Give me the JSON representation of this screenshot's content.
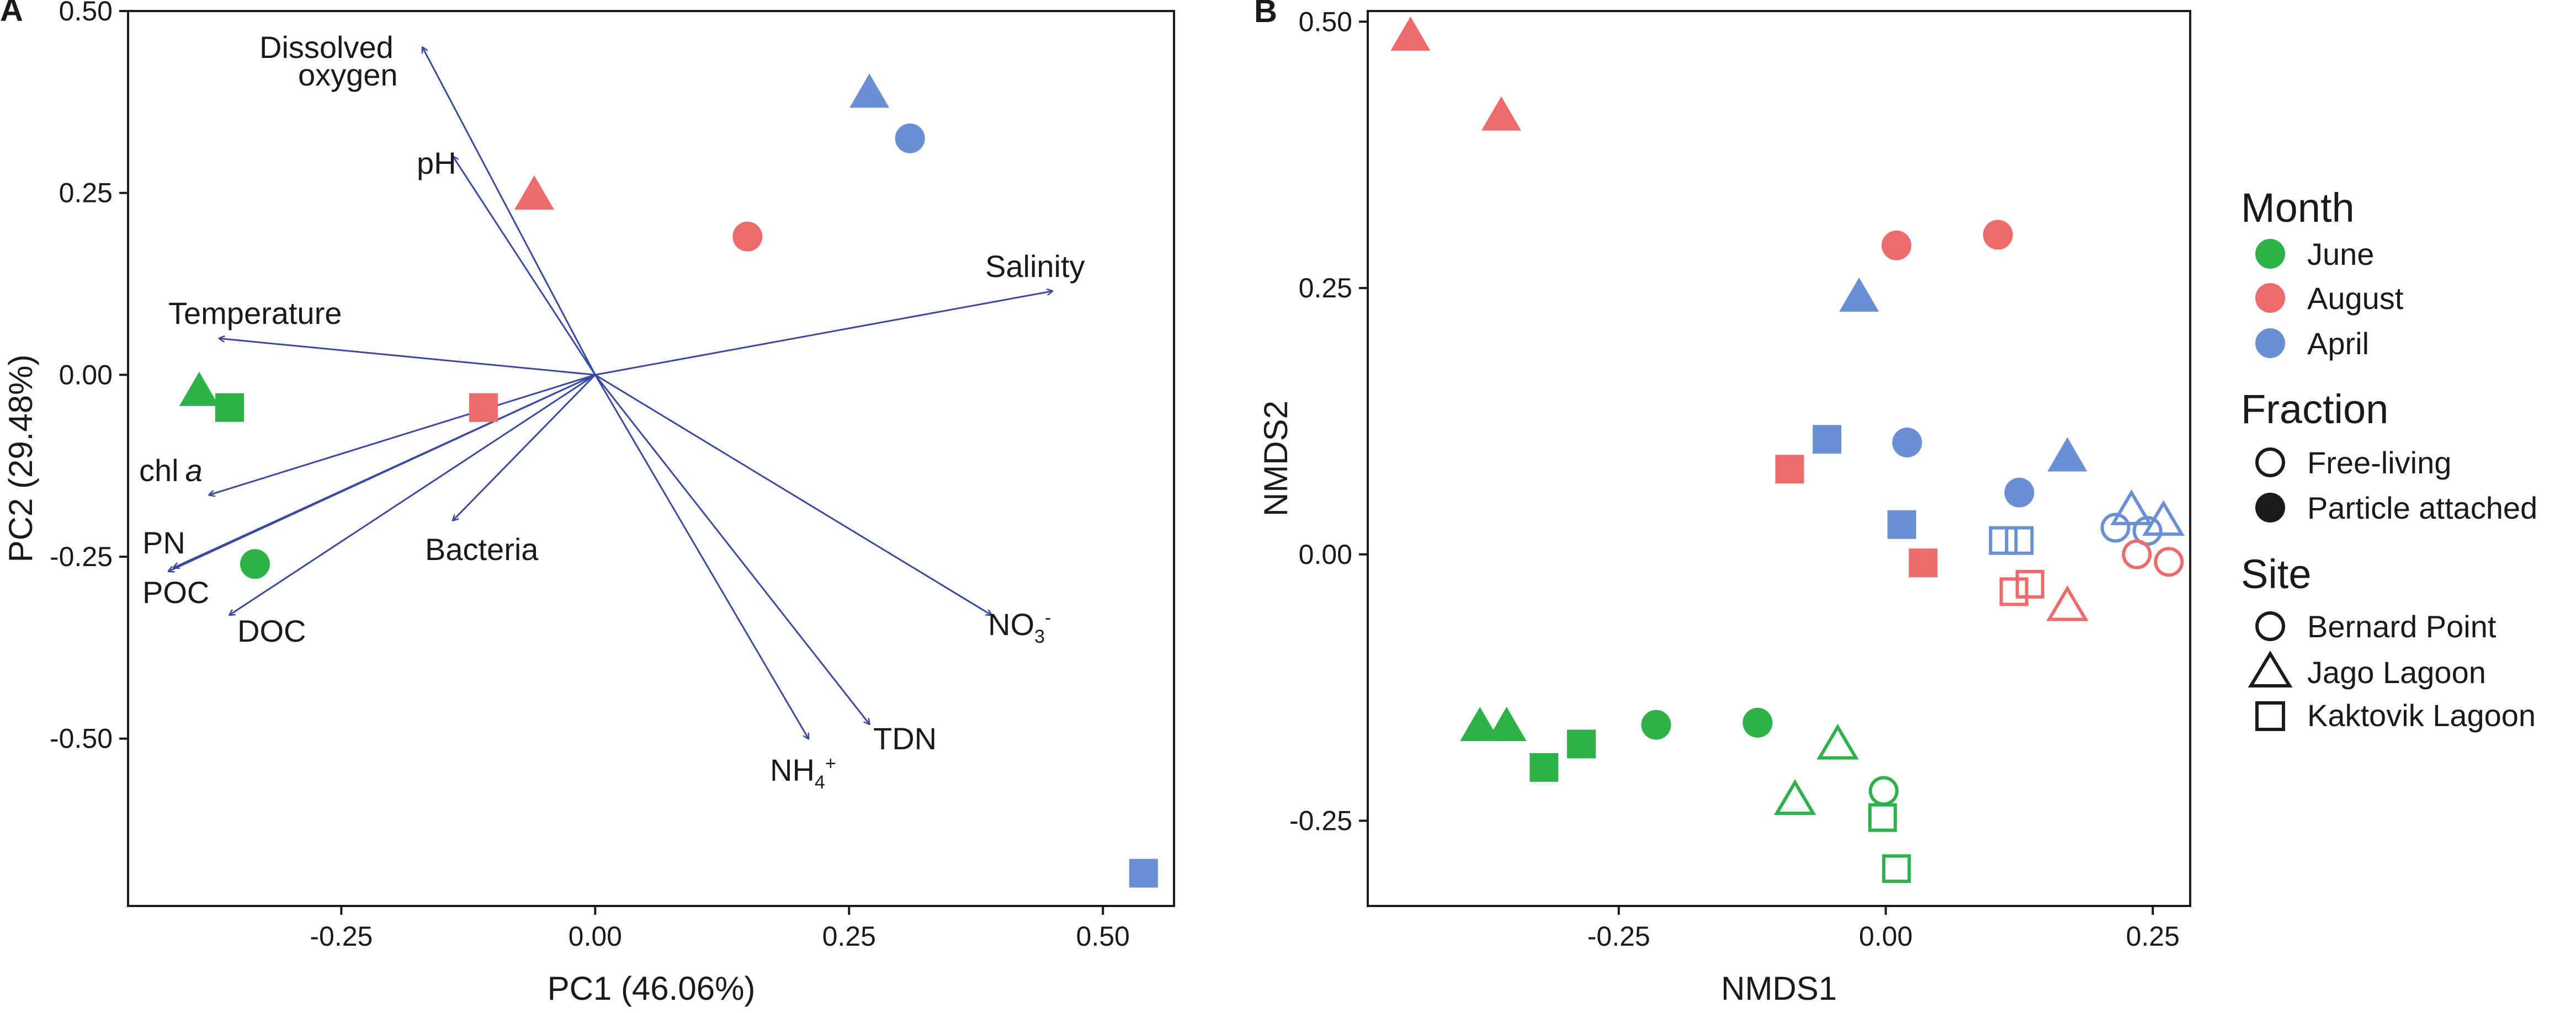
{
  "colors": {
    "June": "#2db24a",
    "August": "#ee6b6c",
    "April": "#6b8fd3",
    "arrow": "#3a4aa0"
  },
  "chart_data": [
    {
      "panel": "A",
      "type": "scatter",
      "title": "",
      "xlabel": "PC1 (46.06%)",
      "ylabel": "PC2 (29.48%)",
      "xlim": [
        -0.46,
        0.57
      ],
      "ylim": [
        -0.73,
        0.5
      ],
      "xticks": [
        -0.25,
        0.0,
        0.25,
        0.5
      ],
      "xtick_labels": [
        "-0.25",
        "0.00",
        "0.25",
        "0.50"
      ],
      "yticks": [
        0.5,
        0.25,
        0.0,
        -0.25,
        -0.5
      ],
      "ytick_labels": [
        "0.50",
        "0.25",
        "0.00",
        "-0.25",
        "-0.50"
      ],
      "points": [
        {
          "month": "June",
          "shape": "triangle",
          "fraction": "Particle attached",
          "x": -0.39,
          "y": -0.025
        },
        {
          "month": "June",
          "shape": "square",
          "fraction": "Particle attached",
          "x": -0.36,
          "y": -0.045
        },
        {
          "month": "June",
          "shape": "circle",
          "fraction": "Particle attached",
          "x": -0.335,
          "y": -0.26
        },
        {
          "month": "August",
          "shape": "triangle",
          "fraction": "Particle attached",
          "x": -0.06,
          "y": 0.245
        },
        {
          "month": "August",
          "shape": "circle",
          "fraction": "Particle attached",
          "x": 0.15,
          "y": 0.19
        },
        {
          "month": "August",
          "shape": "square",
          "fraction": "Particle attached",
          "x": -0.11,
          "y": -0.045
        },
        {
          "month": "April",
          "shape": "triangle",
          "fraction": "Particle attached",
          "x": 0.27,
          "y": 0.385
        },
        {
          "month": "April",
          "shape": "circle",
          "fraction": "Particle attached",
          "x": 0.31,
          "y": 0.325
        },
        {
          "month": "April",
          "shape": "square",
          "fraction": "Particle attached",
          "x": 0.54,
          "y": -0.685
        }
      ],
      "vectors": [
        {
          "label": "Dissolved oxygen",
          "x": -0.17,
          "y": 0.45
        },
        {
          "label": "pH",
          "x": -0.14,
          "y": 0.3
        },
        {
          "label": "Temperature",
          "x": -0.37,
          "y": 0.05
        },
        {
          "label": "Salinity",
          "x": 0.45,
          "y": 0.115
        },
        {
          "label": "chl a",
          "x": -0.38,
          "y": -0.165
        },
        {
          "label": "PN",
          "x": -0.42,
          "y": -0.27
        },
        {
          "label": "POC",
          "x": -0.415,
          "y": -0.265
        },
        {
          "label": "DOC",
          "x": -0.36,
          "y": -0.33
        },
        {
          "label": "Bacteria",
          "x": -0.14,
          "y": -0.2
        },
        {
          "label": "NO3-",
          "x": 0.39,
          "y": -0.33
        },
        {
          "label": "NH4+",
          "x": 0.21,
          "y": -0.5
        },
        {
          "label": "TDN",
          "x": 0.27,
          "y": -0.48
        }
      ],
      "vector_labels": {
        "dissolved_line1": "Dissolved",
        "dissolved_line2": "oxygen",
        "ph": "pH",
        "temperature": "Temperature",
        "salinity": "Salinity",
        "chl": "chl",
        "chl_italic": "a",
        "pn": "PN",
        "poc": "POC",
        "doc": "DOC",
        "bacteria": "Bacteria",
        "no3": "NO",
        "no3_sub": "3",
        "no3_sup": "-",
        "nh4": "NH",
        "nh4_sub": "4",
        "nh4_sup": "+",
        "tdn": "TDN"
      }
    },
    {
      "panel": "B",
      "type": "scatter",
      "title": "",
      "xlabel": "NMDS1",
      "ylabel": "NMDS2",
      "xlim": [
        -0.485,
        0.285
      ],
      "ylim": [
        -0.33,
        0.51
      ],
      "xticks": [
        -0.25,
        0.0,
        0.25
      ],
      "xtick_labels": [
        "-0.25",
        "0.00",
        "0.25"
      ],
      "yticks": [
        0.5,
        0.25,
        0.0,
        -0.25
      ],
      "ytick_labels": [
        "0.50",
        "0.25",
        "0.00",
        "-0.25"
      ],
      "points": [
        {
          "month": "August",
          "shape": "triangle",
          "fraction": "Particle attached",
          "x": -0.445,
          "y": 0.485
        },
        {
          "month": "August",
          "shape": "triangle",
          "fraction": "Particle attached",
          "x": -0.36,
          "y": 0.41
        },
        {
          "month": "August",
          "shape": "circle",
          "fraction": "Particle attached",
          "x": 0.01,
          "y": 0.29
        },
        {
          "month": "August",
          "shape": "circle",
          "fraction": "Particle attached",
          "x": 0.105,
          "y": 0.3
        },
        {
          "month": "April",
          "shape": "triangle",
          "fraction": "Particle attached",
          "x": -0.025,
          "y": 0.24
        },
        {
          "month": "April",
          "shape": "square",
          "fraction": "Particle attached",
          "x": -0.055,
          "y": 0.108
        },
        {
          "month": "August",
          "shape": "square",
          "fraction": "Particle attached",
          "x": -0.09,
          "y": 0.08
        },
        {
          "month": "April",
          "shape": "circle",
          "fraction": "Particle attached",
          "x": 0.02,
          "y": 0.105
        },
        {
          "month": "April",
          "shape": "square",
          "fraction": "Particle attached",
          "x": 0.015,
          "y": 0.028
        },
        {
          "month": "August",
          "shape": "square",
          "fraction": "Particle attached",
          "x": 0.035,
          "y": -0.008
        },
        {
          "month": "April",
          "shape": "circle",
          "fraction": "Particle attached",
          "x": 0.125,
          "y": 0.058
        },
        {
          "month": "April",
          "shape": "triangle",
          "fraction": "Particle attached",
          "x": 0.17,
          "y": 0.09
        },
        {
          "month": "April",
          "shape": "square",
          "fraction": "Free-living",
          "x": 0.11,
          "y": 0.013
        },
        {
          "month": "April",
          "shape": "square",
          "fraction": "Free-living",
          "x": 0.125,
          "y": 0.013
        },
        {
          "month": "August",
          "shape": "square",
          "fraction": "Free-living",
          "x": 0.12,
          "y": -0.035
        },
        {
          "month": "August",
          "shape": "square",
          "fraction": "Free-living",
          "x": 0.135,
          "y": -0.028
        },
        {
          "month": "August",
          "shape": "triangle",
          "fraction": "Free-living",
          "x": 0.17,
          "y": -0.05
        },
        {
          "month": "April",
          "shape": "triangle",
          "fraction": "Free-living",
          "x": 0.23,
          "y": 0.04
        },
        {
          "month": "April",
          "shape": "circle",
          "fraction": "Free-living",
          "x": 0.215,
          "y": 0.025
        },
        {
          "month": "April",
          "shape": "circle",
          "fraction": "Free-living",
          "x": 0.245,
          "y": 0.022
        },
        {
          "month": "April",
          "shape": "triangle",
          "fraction": "Free-living",
          "x": 0.26,
          "y": 0.03
        },
        {
          "month": "August",
          "shape": "circle",
          "fraction": "Free-living",
          "x": 0.235,
          "y": 0.0
        },
        {
          "month": "August",
          "shape": "circle",
          "fraction": "Free-living",
          "x": 0.265,
          "y": -0.007
        },
        {
          "month": "June",
          "shape": "triangle",
          "fraction": "Particle attached",
          "x": -0.38,
          "y": -0.163
        },
        {
          "month": "June",
          "shape": "triangle",
          "fraction": "Particle attached",
          "x": -0.355,
          "y": -0.163
        },
        {
          "month": "June",
          "shape": "square",
          "fraction": "Particle attached",
          "x": -0.32,
          "y": -0.2
        },
        {
          "month": "June",
          "shape": "square",
          "fraction": "Particle attached",
          "x": -0.285,
          "y": -0.178
        },
        {
          "month": "June",
          "shape": "circle",
          "fraction": "Particle attached",
          "x": -0.215,
          "y": -0.16
        },
        {
          "month": "June",
          "shape": "circle",
          "fraction": "Particle attached",
          "x": -0.12,
          "y": -0.158
        },
        {
          "month": "June",
          "shape": "triangle",
          "fraction": "Free-living",
          "x": -0.045,
          "y": -0.18
        },
        {
          "month": "June",
          "shape": "triangle",
          "fraction": "Free-living",
          "x": -0.085,
          "y": -0.232
        },
        {
          "month": "June",
          "shape": "circle",
          "fraction": "Free-living",
          "x": -0.002,
          "y": -0.222
        },
        {
          "month": "June",
          "shape": "square",
          "fraction": "Free-living",
          "x": -0.003,
          "y": -0.247
        },
        {
          "month": "June",
          "shape": "square",
          "fraction": "Free-living",
          "x": 0.01,
          "y": -0.295
        }
      ]
    }
  ],
  "legend": {
    "month_title": "Month",
    "months": [
      {
        "label": "June",
        "key": "June"
      },
      {
        "label": "August",
        "key": "August"
      },
      {
        "label": "April",
        "key": "April"
      }
    ],
    "fraction_title": "Fraction",
    "fractions": [
      {
        "label": "Free-living",
        "filled": false
      },
      {
        "label": "Particle attached",
        "filled": true
      }
    ],
    "site_title": "Site",
    "sites": [
      {
        "label": "Bernard Point",
        "shape": "circle"
      },
      {
        "label": "Jago Lagoon",
        "shape": "triangle"
      },
      {
        "label": "Kaktovik Lagoon",
        "shape": "square"
      }
    ]
  }
}
